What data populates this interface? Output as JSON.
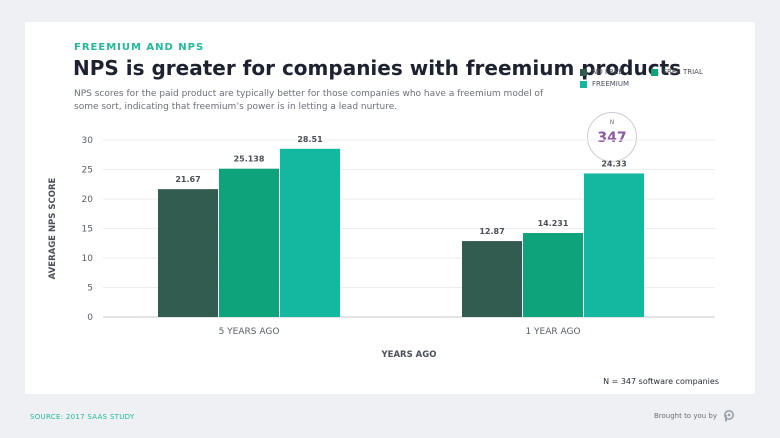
{
  "header": {
    "kicker": "FREEMIUM AND NPS",
    "title": "NPS is greater for companies with freemium products",
    "subtitle": "NPS scores for the paid product are typically better for those companies who have a freemium model of some sort, indicating that freemium’s power is in letting a lead nurture."
  },
  "callout": {
    "label": "N",
    "value": "347"
  },
  "footnote": "N = 347 software companies",
  "footer": {
    "source": "SOURCE: 2017 SAAS STUDY",
    "brand": "Brought to you by"
  },
  "colors": {
    "no_free": "#335c51",
    "free_trial": "#0fa37b",
    "freemium": "#14b7a0",
    "accent": "#21b89b",
    "callout": "#8d5aa5"
  },
  "chart_data": {
    "type": "bar",
    "categories": [
      "5 YEARS AGO",
      "1 YEAR AGO"
    ],
    "series": [
      {
        "name": "NO FREE",
        "values": [
          21.67,
          12.87
        ],
        "labels": [
          "21.67",
          "12.87"
        ]
      },
      {
        "name": "FREE TRIAL",
        "values": [
          25.138,
          14.231
        ],
        "labels": [
          "25.138",
          "14.231"
        ]
      },
      {
        "name": "FREEMIUM",
        "values": [
          28.51,
          24.33
        ],
        "labels": [
          "28.51",
          "24.33"
        ]
      }
    ],
    "xlabel": "YEARS AGO",
    "ylabel": "AVERAGE NPS SCORE",
    "ylim": [
      0,
      30
    ],
    "yticks": [
      0,
      5,
      10,
      15,
      20,
      25,
      30
    ],
    "grid": true,
    "legend_position": "top-right"
  }
}
